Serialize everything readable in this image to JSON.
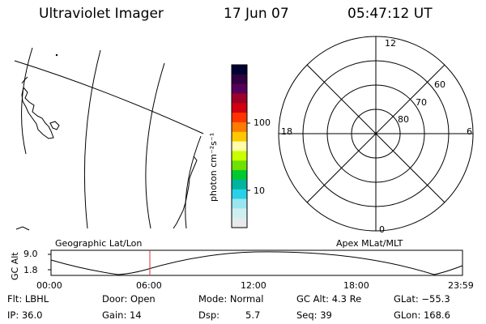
{
  "header": {
    "instrument": "Ultraviolet Imager",
    "date": "17 Jun 07",
    "time": "05:47:12 UT"
  },
  "colorbar": {
    "unit_label": "photon cm⁻²s⁻¹",
    "ticks": [
      "100",
      "10"
    ],
    "colors": [
      "#000033",
      "#300040",
      "#55005a",
      "#a00028",
      "#d00010",
      "#ff3300",
      "#ff7a00",
      "#ffc800",
      "#ffffaa",
      "#c8ff00",
      "#70e000",
      "#00c830",
      "#00b4a0",
      "#2ad0e8",
      "#9ae6f0",
      "#cfeef0",
      "#e6eaea"
    ]
  },
  "map": {
    "label": "Geographic Lat/Lon"
  },
  "polar": {
    "label": "Apex MLat/MLT",
    "mlt_labels": {
      "top": "12",
      "bottom": "0",
      "left": "18",
      "right": "6"
    },
    "lat_labels": [
      "60",
      "70",
      "80"
    ]
  },
  "altitude_plot": {
    "ylabel": "GC Alt",
    "yticks": [
      "9.0",
      "1.8"
    ],
    "xticks": [
      "00:00",
      "06:00",
      "12:00",
      "18:00",
      "23:59"
    ],
    "marker_time": "05:47:12"
  },
  "footer": {
    "flt": "Flt: LBHL",
    "ip": "IP: 36.0",
    "door": "Door: Open",
    "gain": "Gain: 14",
    "mode": "Mode: Normal",
    "dsp_label": "Dsp:",
    "dsp_value": "5.7",
    "gcalt": "GC Alt: 4.3 Re",
    "seq": "Seq: 39",
    "glat": "GLat: −55.3",
    "glon": "GLon: 168.6"
  }
}
